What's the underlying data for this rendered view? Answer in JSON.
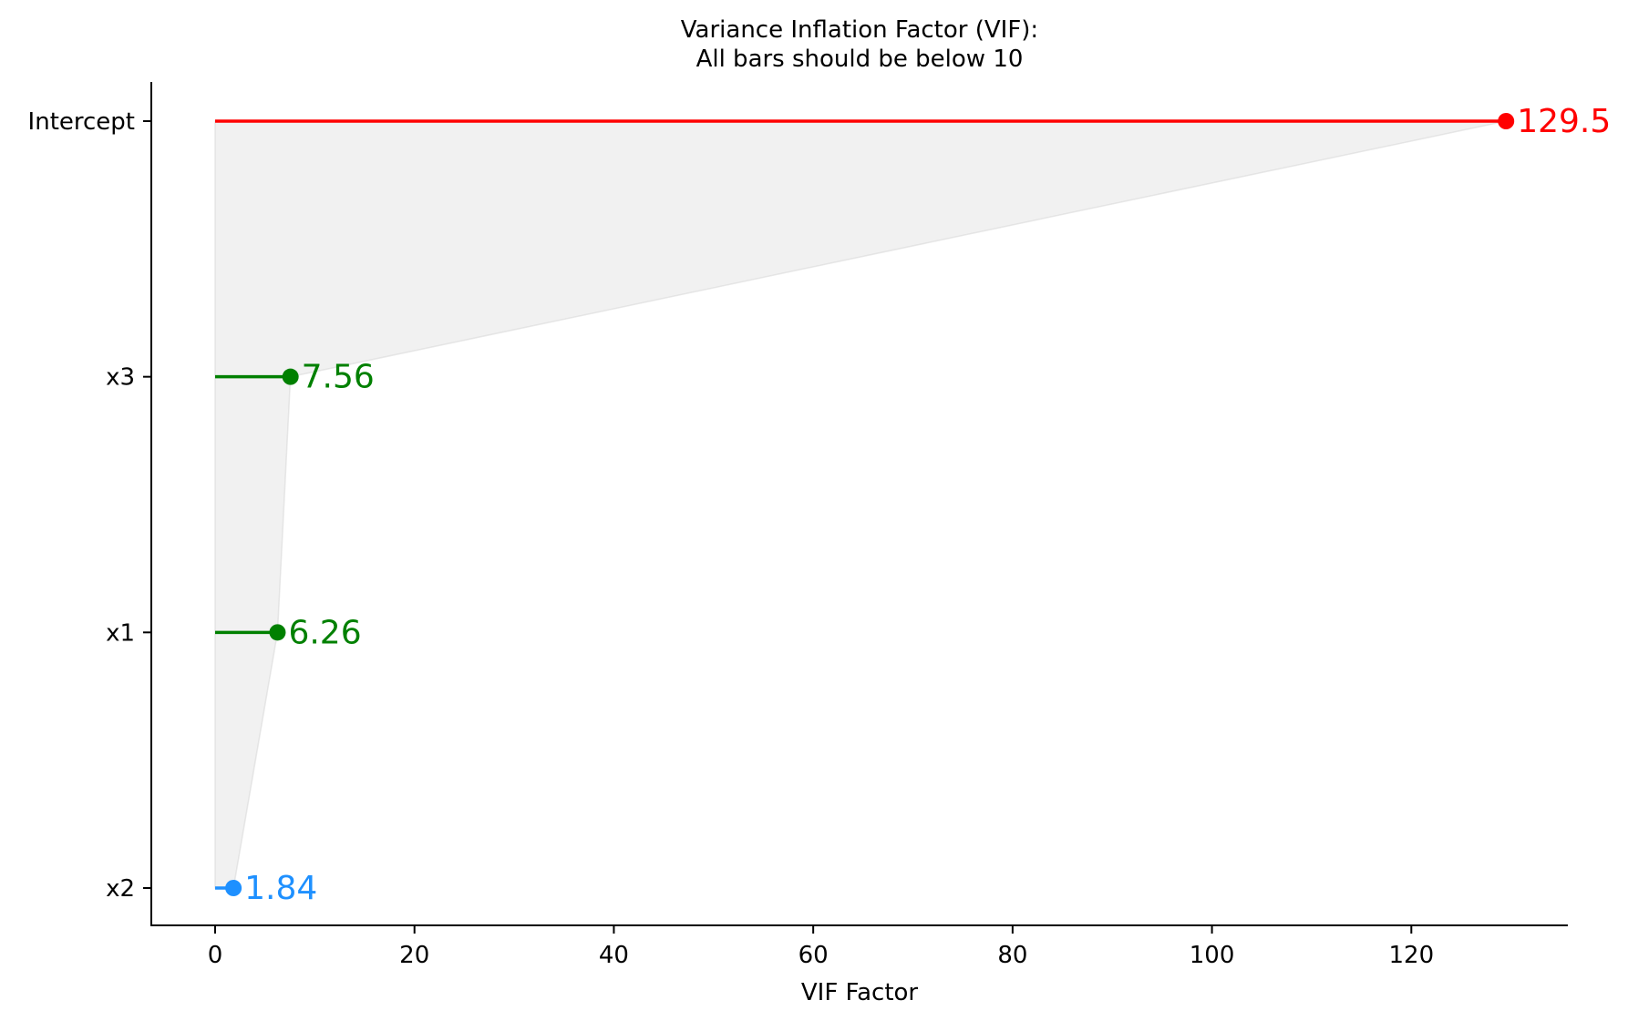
{
  "chart_data": {
    "type": "lollipop",
    "title_lines": [
      "Variance Inflation Factor (VIF):",
      "All bars should be below 10"
    ],
    "xlabel": "VIF Factor",
    "ylabel": "",
    "xlim": [
      -6.4,
      135.7
    ],
    "xticks": [
      0,
      20,
      40,
      60,
      80,
      100,
      120
    ],
    "xtick_labels": [
      "0",
      "20",
      "40",
      "60",
      "80",
      "100",
      "120"
    ],
    "categories": [
      "Intercept",
      "x3",
      "x1",
      "x2"
    ],
    "values": [
      129.5,
      7.56,
      6.26,
      1.84
    ],
    "value_labels": [
      "129.5",
      "7.56",
      "6.26",
      "1.84"
    ],
    "colors": [
      "#ff0000",
      "#008000",
      "#008000",
      "#1e90ff"
    ],
    "fill_color": "#d3d3d3",
    "threshold": 10,
    "grid": false,
    "legend": "none"
  }
}
